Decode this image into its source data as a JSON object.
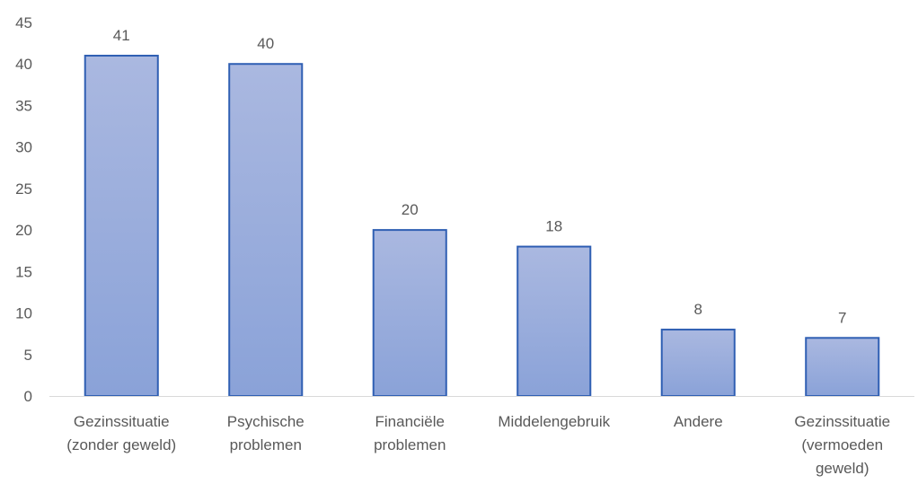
{
  "chart_data": {
    "type": "bar",
    "title": "",
    "xlabel": "",
    "ylabel": "",
    "ylim": [
      0,
      45
    ],
    "yticks": [
      0,
      5,
      10,
      15,
      20,
      25,
      30,
      35,
      40,
      45
    ],
    "grid": false,
    "legend": "none",
    "categories": [
      [
        "Gezinssituatie",
        "(zonder geweld)"
      ],
      [
        "Psychische",
        "problemen"
      ],
      [
        "Financiële",
        "problemen"
      ],
      [
        "Middelengebruik"
      ],
      [
        "Andere"
      ],
      [
        "Gezinssituatie",
        "(vermoeden",
        "geweld)"
      ]
    ],
    "values": [
      41,
      40,
      20,
      18,
      8,
      7
    ],
    "colors": {
      "bar_top": "#aab8e0",
      "bar_bottom": "#8aa2d8",
      "bar_border": "#2f5fb3",
      "axis": "#d9d9d9",
      "text": "#595959"
    }
  }
}
